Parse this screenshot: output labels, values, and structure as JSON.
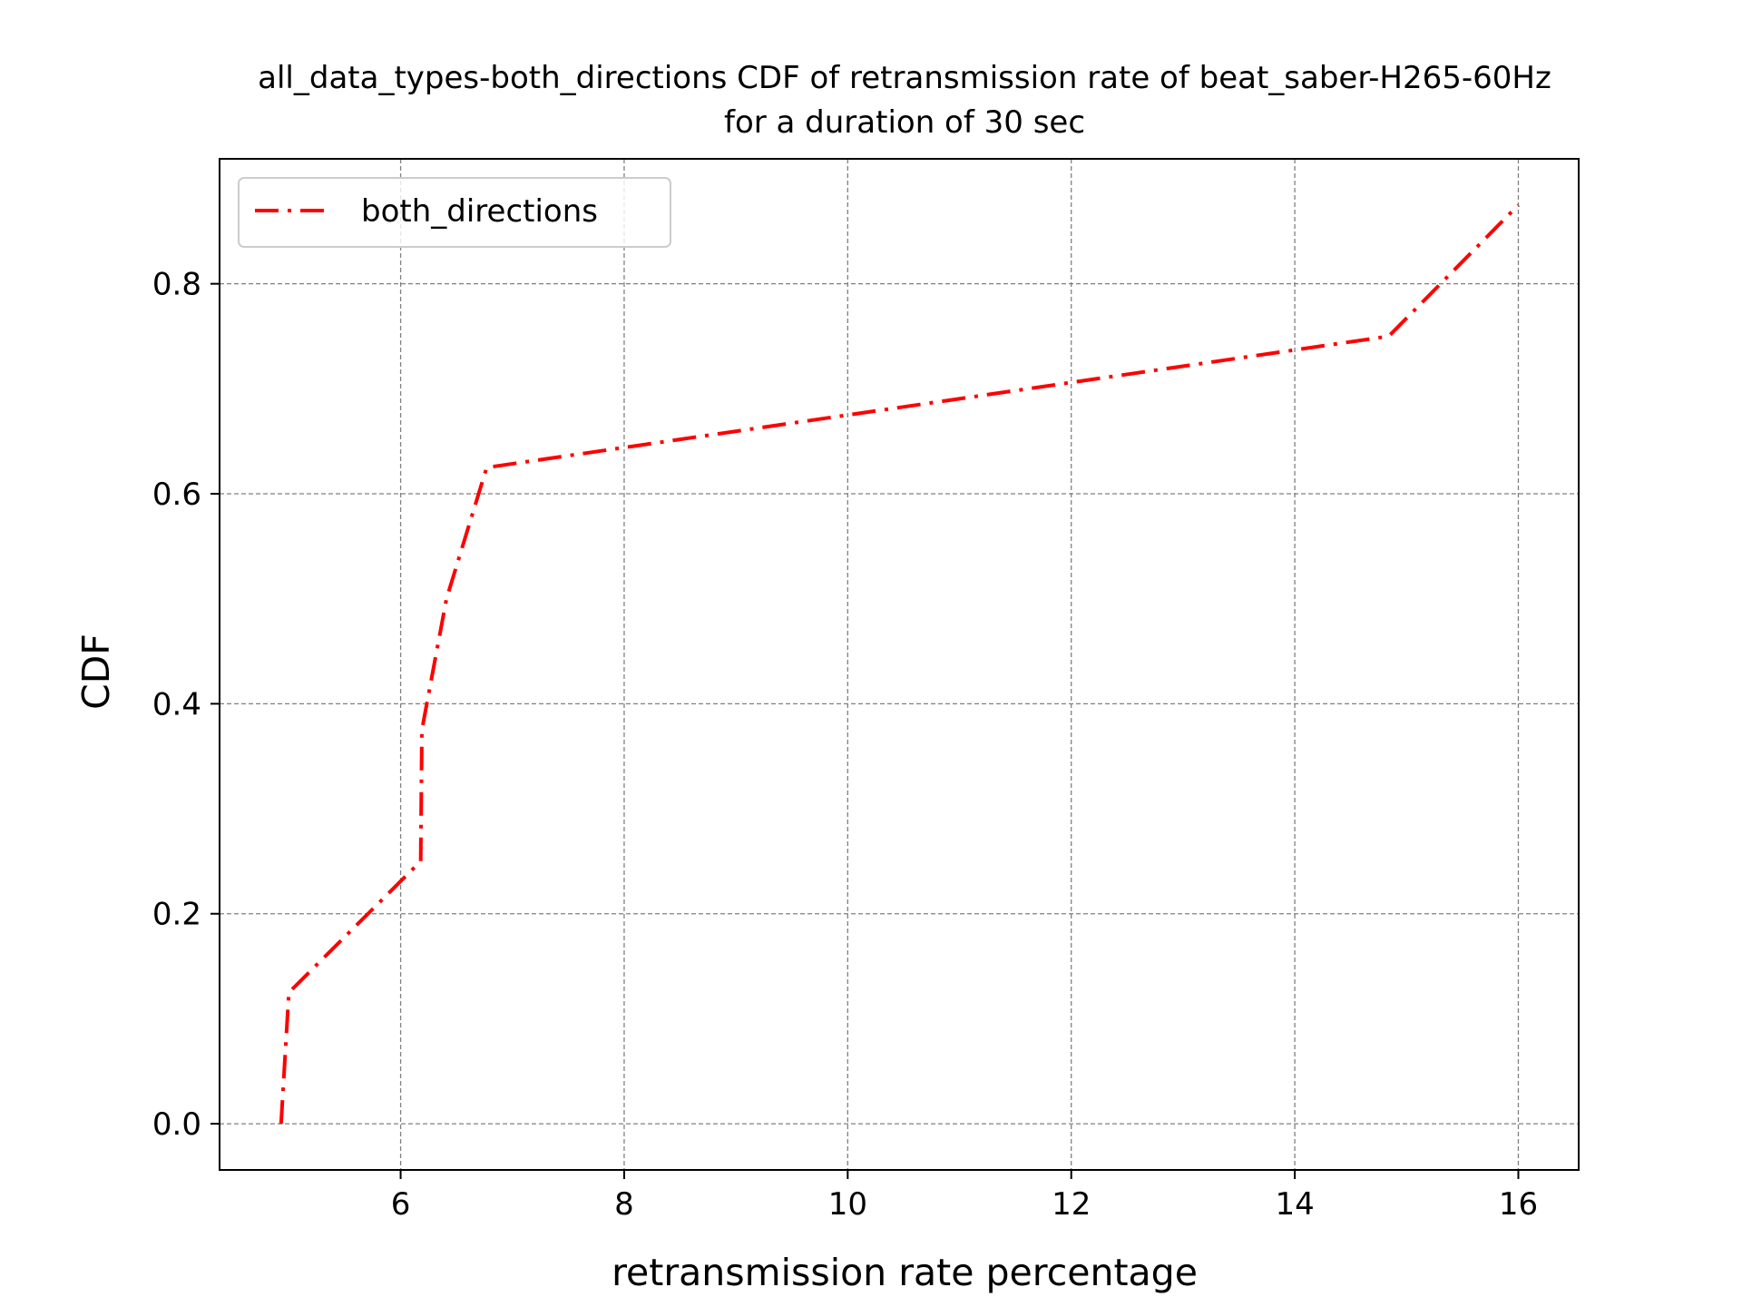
{
  "chart_data": {
    "type": "line",
    "title_line1": "all_data_types-both_directions CDF of retransmission rate of beat_saber-H265-60Hz",
    "title_line2": "for a duration of 30 sec",
    "xlabel": "retransmission rate percentage",
    "ylabel": "CDF",
    "xlim": [
      4.38,
      16.54
    ],
    "ylim": [
      -0.044,
      0.919
    ],
    "grid": true,
    "legend_position": "upper-left",
    "xticks": [
      6,
      8,
      10,
      12,
      14,
      16
    ],
    "yticks": [
      0.0,
      0.2,
      0.4,
      0.6,
      0.8
    ],
    "xtick_labels": [
      "6",
      "8",
      "10",
      "12",
      "14",
      "16"
    ],
    "ytick_labels": [
      "0.0",
      "0.2",
      "0.4",
      "0.6",
      "0.8"
    ],
    "series": [
      {
        "name": "both_directions",
        "color": "#ff0000",
        "line_style": "dash-dot",
        "x": [
          4.93,
          5.0,
          6.18,
          6.19,
          6.41,
          6.77,
          14.84,
          16.0
        ],
        "y": [
          0.0,
          0.125,
          0.25,
          0.375,
          0.5,
          0.625,
          0.75,
          0.875
        ]
      }
    ]
  }
}
